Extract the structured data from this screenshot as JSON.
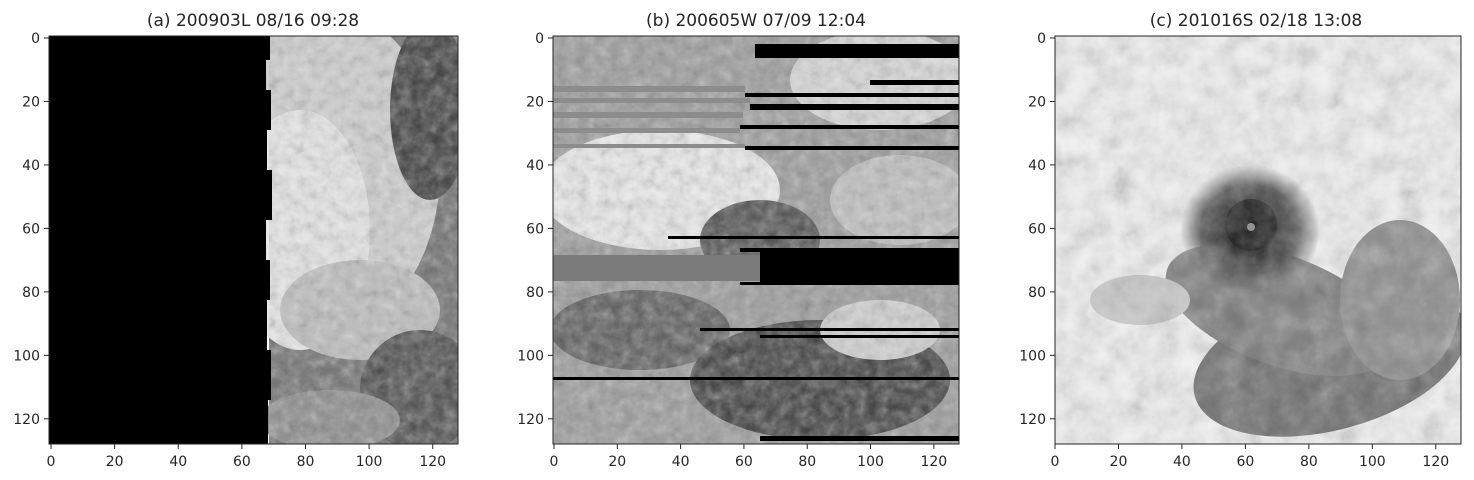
{
  "figure": {
    "panels": [
      {
        "title": "(a) 200903L 08/16 09:28",
        "scene": "black-left-half",
        "x_ticks": [
          "0",
          "20",
          "40",
          "60",
          "80",
          "100",
          "120"
        ],
        "y_ticks": [
          "0",
          "20",
          "40",
          "60",
          "80",
          "100",
          "120"
        ]
      },
      {
        "title": "(b) 200605W 07/09 12:04",
        "scene": "striped-scanlines",
        "x_ticks": [
          "0",
          "20",
          "40",
          "60",
          "80",
          "100",
          "120"
        ],
        "y_ticks": [
          "0",
          "20",
          "40",
          "60",
          "80",
          "100",
          "120"
        ]
      },
      {
        "title": "(c) 201016S 02/18 13:08",
        "scene": "cyclone-eye",
        "x_ticks": [
          "0",
          "20",
          "40",
          "60",
          "80",
          "100",
          "120"
        ],
        "y_ticks": [
          "0",
          "20",
          "40",
          "60",
          "80",
          "100",
          "120"
        ]
      }
    ],
    "colors": {
      "background": "#ffffff",
      "axis": "#262626",
      "cloud": "#f2f2f2",
      "dark": "#000000"
    }
  }
}
